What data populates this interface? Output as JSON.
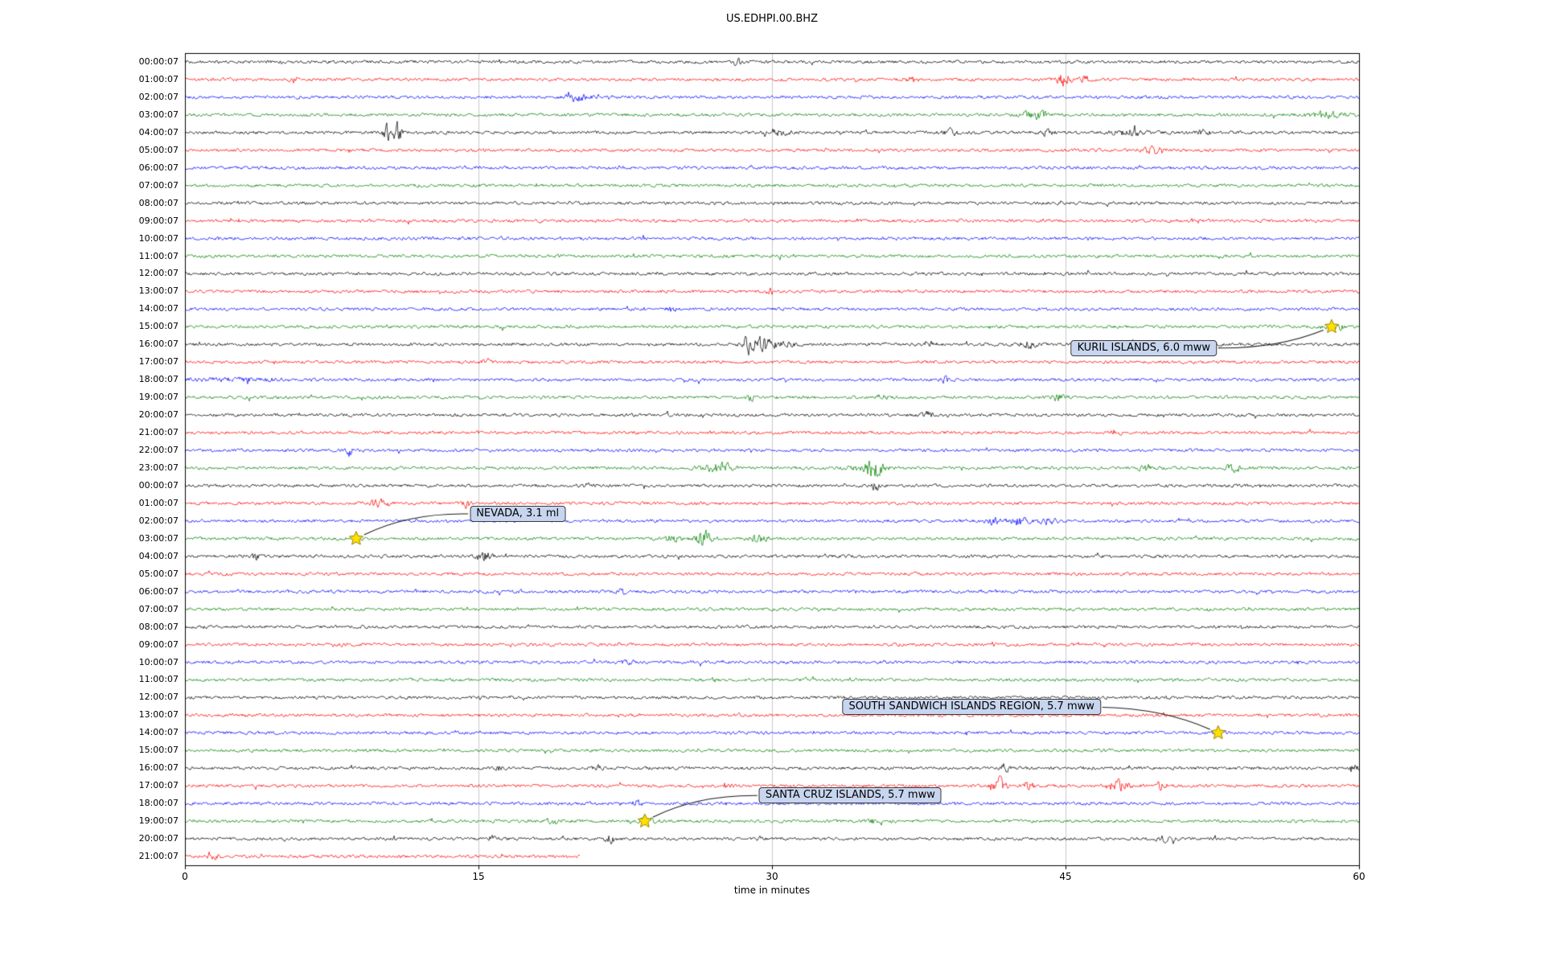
{
  "title": "US.EDHPI.00.BHZ",
  "chart_data": {
    "type": "line",
    "subtype": "seismogram_helicorder_dayplot",
    "station": "US.EDHPI.00.BHZ",
    "xlabel": "time in minutes",
    "xlim": [
      0,
      60
    ],
    "x_ticks": [
      "0",
      "15",
      "30",
      "45",
      "60"
    ],
    "grid": "vertical-only",
    "grid_color": "#c8c8c8",
    "trace_color_cycle": [
      "#000000",
      "#ff0000",
      "#0000ff",
      "#008000"
    ],
    "marker": {
      "shape": "star",
      "fill": "#ffe000",
      "edge": "#9a8200"
    },
    "rows": [
      {
        "label": "00:00:07",
        "events": [
          [
            28.2,
            2.0,
            0.15
          ]
        ]
      },
      {
        "label": "01:00:07",
        "events": [
          [
            5.6,
            1.5,
            0.2
          ],
          [
            37.2,
            1.5,
            0.3
          ],
          [
            44.9,
            4.0,
            0.25
          ],
          [
            45.9,
            2.5,
            0.2
          ]
        ]
      },
      {
        "label": "02:00:07",
        "events": [
          [
            20.0,
            2.5,
            0.35
          ],
          [
            21.3,
            1.5,
            0.3
          ]
        ]
      },
      {
        "label": "03:00:07",
        "events": [
          [
            43.5,
            2.5,
            0.5
          ],
          [
            58.3,
            2.0,
            0.6
          ]
        ]
      },
      {
        "label": "04:00:07",
        "events": [
          [
            10.3,
            5.0,
            0.15
          ],
          [
            10.8,
            7.0,
            0.18
          ],
          [
            30.3,
            2.0,
            0.4
          ],
          [
            39.2,
            1.8,
            0.3
          ],
          [
            44.0,
            1.5,
            0.3
          ],
          [
            48.2,
            2.2,
            0.5
          ],
          [
            52.0,
            1.5,
            0.3
          ]
        ]
      },
      {
        "label": "05:00:07",
        "events": [
          [
            49.4,
            2.0,
            0.4
          ]
        ]
      },
      {
        "label": "06:00:07",
        "events": []
      },
      {
        "label": "07:00:07",
        "events": []
      },
      {
        "label": "08:00:07",
        "events": []
      },
      {
        "label": "09:00:07",
        "events": []
      },
      {
        "label": "10:00:07",
        "events": []
      },
      {
        "label": "11:00:07",
        "events": []
      },
      {
        "label": "12:00:07",
        "events": []
      },
      {
        "label": "13:00:07",
        "events": [
          [
            29.9,
            1.8,
            0.15
          ]
        ]
      },
      {
        "label": "14:00:07",
        "events": [
          [
            24.9,
            1.6,
            0.2
          ]
        ]
      },
      {
        "label": "15:00:07",
        "events": [
          [
            58.8,
            1.8,
            0.5
          ]
        ]
      },
      {
        "label": "16:00:07",
        "events": [
          [
            28.8,
            5.5,
            0.25
          ],
          [
            29.5,
            4.5,
            0.3
          ],
          [
            30.5,
            2.0,
            0.4
          ],
          [
            38.1,
            1.4,
            0.2
          ],
          [
            43.1,
            2.2,
            0.25
          ],
          [
            48.6,
            1.8,
            0.3
          ]
        ]
      },
      {
        "label": "17:00:07",
        "events": [
          [
            15.4,
            1.8,
            0.15
          ]
        ]
      },
      {
        "label": "18:00:07",
        "events": [
          [
            3.0,
            0.8,
            2.0
          ],
          [
            38.9,
            3.0,
            0.12
          ]
        ]
      },
      {
        "label": "19:00:07",
        "events": [
          [
            28.9,
            3.5,
            0.1
          ],
          [
            35.6,
            1.3,
            0.2
          ],
          [
            44.6,
            1.8,
            0.25
          ]
        ]
      },
      {
        "label": "20:00:07",
        "events": [
          [
            37.9,
            2.0,
            0.2
          ]
        ]
      },
      {
        "label": "21:00:07",
        "events": [
          [
            47.6,
            1.8,
            0.2
          ]
        ]
      },
      {
        "label": "22:00:07",
        "events": [
          [
            8.4,
            3.0,
            0.1
          ]
        ]
      },
      {
        "label": "23:00:07",
        "events": [
          [
            26.9,
            2.5,
            0.4
          ],
          [
            27.6,
            2.5,
            0.3
          ],
          [
            34.9,
            3.0,
            0.5
          ],
          [
            35.3,
            3.5,
            0.3
          ],
          [
            49.1,
            1.6,
            0.3
          ],
          [
            53.6,
            2.0,
            0.3
          ]
        ]
      },
      {
        "label": "00:00:07",
        "events": [
          [
            20.6,
            1.3,
            0.2
          ],
          [
            35.3,
            3.5,
            0.12
          ]
        ]
      },
      {
        "label": "01:00:07",
        "events": [
          [
            9.9,
            2.5,
            0.35
          ],
          [
            14.4,
            3.0,
            0.12
          ]
        ]
      },
      {
        "label": "02:00:07",
        "events": [
          [
            41.3,
            2.0,
            0.3
          ],
          [
            42.6,
            2.5,
            0.35
          ],
          [
            44.1,
            2.0,
            0.3
          ]
        ]
      },
      {
        "label": "03:00:07",
        "events": [
          [
            24.9,
            1.8,
            0.3
          ],
          [
            26.5,
            4.5,
            0.3
          ],
          [
            29.3,
            2.5,
            0.3
          ]
        ]
      },
      {
        "label": "04:00:07",
        "events": [
          [
            3.6,
            1.6,
            0.15
          ],
          [
            15.1,
            2.0,
            0.2
          ],
          [
            15.5,
            2.0,
            0.15
          ]
        ]
      },
      {
        "label": "05:00:07",
        "events": []
      },
      {
        "label": "06:00:07",
        "events": [
          [
            22.3,
            1.6,
            0.15
          ]
        ]
      },
      {
        "label": "07:00:07",
        "events": []
      },
      {
        "label": "08:00:07",
        "events": []
      },
      {
        "label": "09:00:07",
        "events": []
      },
      {
        "label": "10:00:07",
        "events": [
          [
            22.6,
            1.3,
            0.2
          ]
        ]
      },
      {
        "label": "11:00:07",
        "events": []
      },
      {
        "label": "12:00:07",
        "events": []
      },
      {
        "label": "13:00:07",
        "events": []
      },
      {
        "label": "14:00:07",
        "events": [
          [
            52.8,
            1.2,
            0.3
          ]
        ]
      },
      {
        "label": "15:00:07",
        "events": []
      },
      {
        "label": "16:00:07",
        "events": [
          [
            16.1,
            2.0,
            0.12
          ],
          [
            21.1,
            1.6,
            0.15
          ],
          [
            41.9,
            3.5,
            0.12
          ],
          [
            59.7,
            2.5,
            0.2
          ]
        ]
      },
      {
        "label": "17:00:07",
        "events": [
          [
            27.6,
            1.8,
            0.2
          ],
          [
            41.6,
            4.5,
            0.25
          ],
          [
            43.1,
            3.0,
            0.2
          ],
          [
            47.7,
            3.5,
            0.4
          ],
          [
            49.9,
            2.5,
            0.2
          ]
        ]
      },
      {
        "label": "18:00:07",
        "events": [
          [
            23.1,
            2.0,
            0.15
          ],
          [
            27.4,
            2.0,
            0.15
          ]
        ]
      },
      {
        "label": "19:00:07",
        "events": [
          [
            18.8,
            2.0,
            0.2
          ],
          [
            23.6,
            1.5,
            0.3
          ],
          [
            35.1,
            1.6,
            0.2
          ]
        ]
      },
      {
        "label": "20:00:07",
        "events": [
          [
            15.7,
            1.6,
            0.15
          ],
          [
            21.7,
            2.5,
            0.2
          ],
          [
            50.1,
            2.0,
            0.25
          ]
        ]
      },
      {
        "label": "21:00:07",
        "events": [
          [
            1.5,
            1.5,
            0.2
          ]
        ],
        "end_minute": 20.2
      }
    ],
    "annotations": [
      {
        "label": "KURIL ISLANDS, 6.0 mww",
        "row": 15,
        "minute": 58.6,
        "box_row": 16.2,
        "box_minute": 49.0,
        "side": "right",
        "curve": 0.1
      },
      {
        "label": "NEVADA, 3.1 ml",
        "row": 27,
        "minute": 8.75,
        "box_row": 25.6,
        "box_minute": 17.0,
        "side": "left",
        "curve": 0.12
      },
      {
        "label": "SOUTH SANDWICH ISLANDS REGION, 5.7 mww",
        "row": 38,
        "minute": 52.8,
        "box_row": 36.55,
        "box_minute": 40.2,
        "side": "right",
        "curve": -0.1
      },
      {
        "label": "SANTA CRUZ ISLANDS, 5.7 mww",
        "row": 43,
        "minute": 23.5,
        "box_row": 41.55,
        "box_minute": 34.0,
        "side": "left",
        "curve": 0.12
      }
    ]
  }
}
